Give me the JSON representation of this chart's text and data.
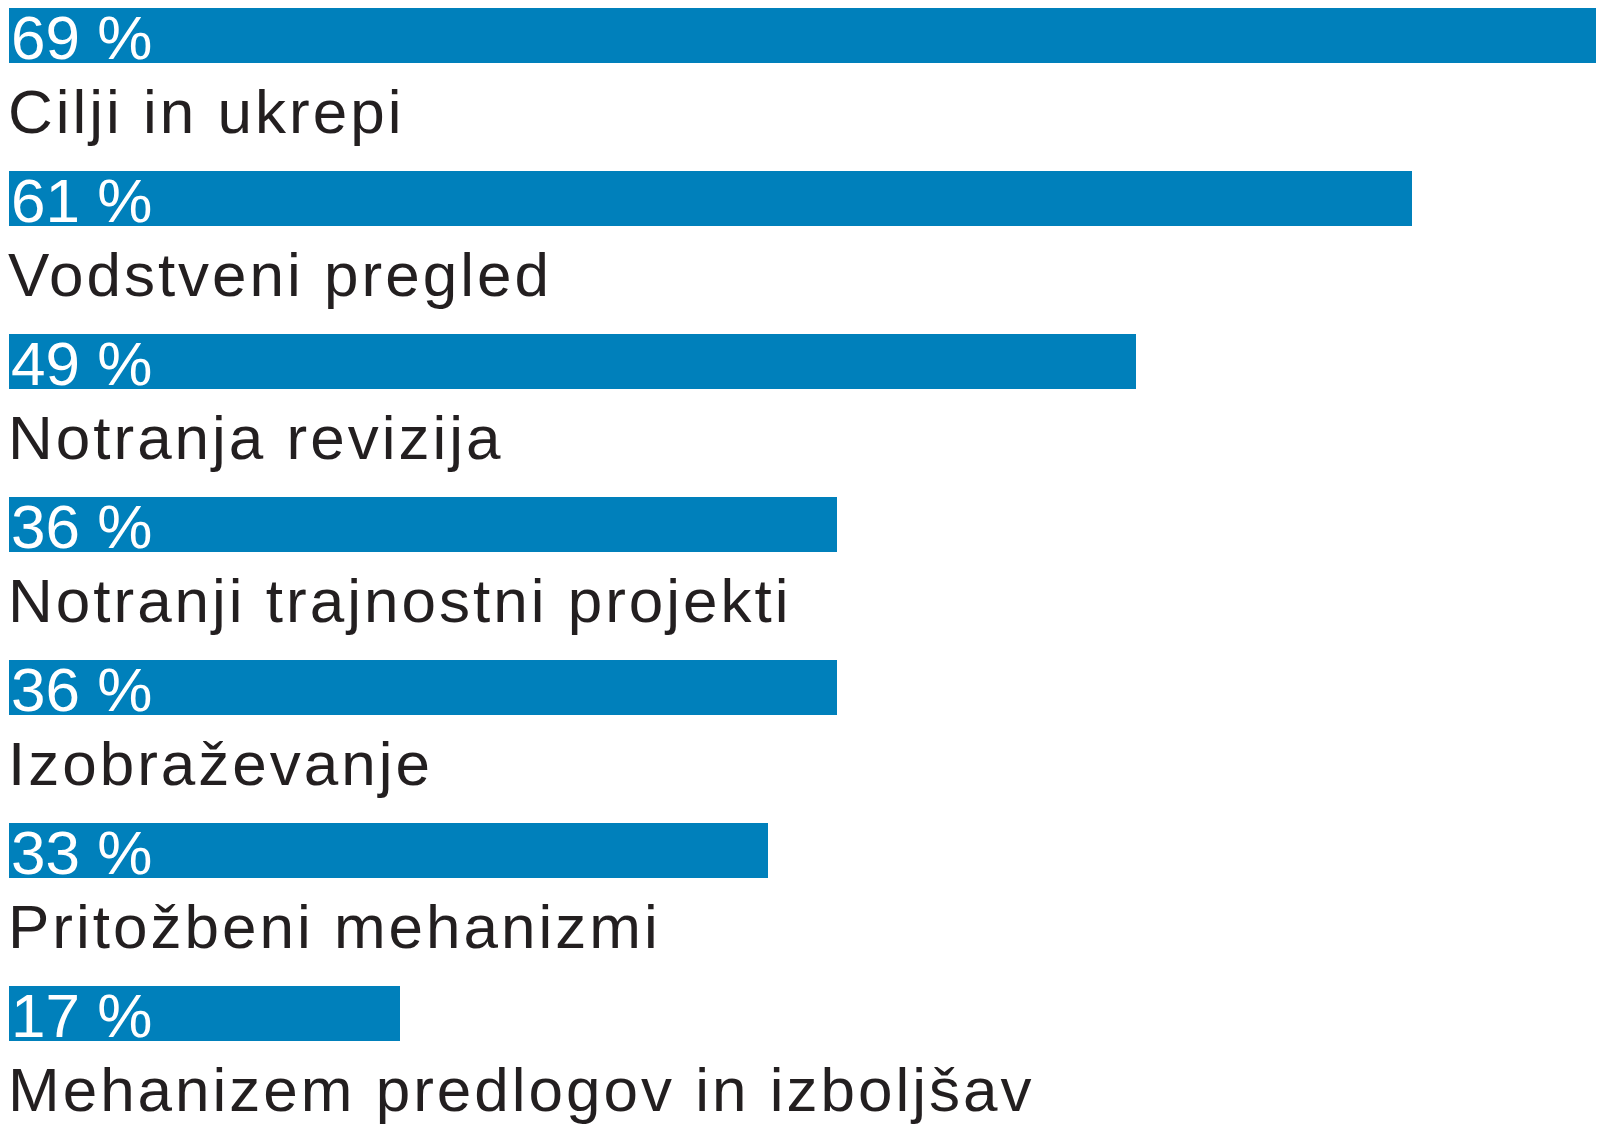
{
  "chart_data": {
    "type": "bar",
    "orientation": "horizontal",
    "categories": [
      "Cilji in ukrepi",
      "Vodstveni pregled",
      "Notranja revizija",
      "Notranji trajnostni projekti",
      "Izobraževanje",
      "Pritožbeni mehanizmi",
      "Mehanizem predlogov in izboljšav"
    ],
    "values": [
      69,
      61,
      49,
      36,
      36,
      33,
      17
    ],
    "value_labels": [
      "69 %",
      "61 %",
      "49 %",
      "36 %",
      "36 %",
      "33 %",
      "17 %"
    ],
    "color": "#0080bb"
  }
}
